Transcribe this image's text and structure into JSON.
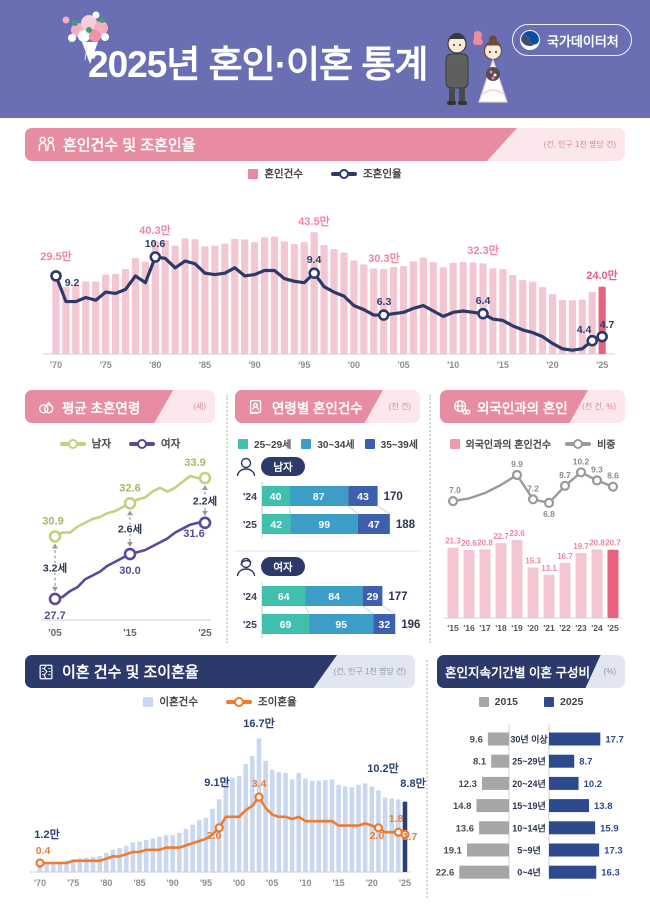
{
  "page": {
    "title": "2025년 혼인·이혼 통계",
    "agency": "국가데이터처"
  },
  "sections": {
    "marriage_trend": {
      "title": "혼인건수 및 조혼인율",
      "unit": "(건, 인구 1천 명당 건)",
      "legend_bar": "혼인건수",
      "legend_line": "조혼인율"
    },
    "first_marriage_age": {
      "title": "평균 초혼연령",
      "unit": "(세)",
      "legend_male": "남자",
      "legend_female": "여자"
    },
    "marriage_by_age": {
      "title": "연령별 혼인건수",
      "unit": "(천 건)"
    },
    "foreign_marriage": {
      "title": "외국인과의 혼인",
      "unit": "(천 건, %)",
      "legend_bar": "외국인과의 혼인건수",
      "legend_line": "비중"
    },
    "divorce_trend": {
      "title": "이혼 건수 및 조이혼율",
      "unit": "(건, 인구 1천 명당 건)",
      "legend_bar": "이혼건수",
      "legend_line": "조이혼율"
    },
    "divorce_duration": {
      "title": "혼인지속기간별 이혼 구성비",
      "unit": "(%)",
      "legend_2015": "2015",
      "legend_2025": "2025"
    }
  },
  "chart_data": {
    "marriage_trend": {
      "type": "bar+line",
      "x_start": 1970,
      "tick_labels": [
        "'70",
        "'75",
        "'80",
        "'85",
        "'90",
        "'95",
        "'00",
        "'05",
        "'10",
        "'15",
        "'20",
        "'25"
      ],
      "bars_unit": "만 건",
      "bars": [
        29.5,
        23.9,
        24.4,
        25.9,
        25.9,
        28.3,
        28.6,
        30.3,
        34.3,
        33.0,
        40.3,
        40.6,
        38.7,
        41.3,
        41.0,
        38.4,
        38.7,
        39.4,
        41.1,
        40.9,
        39.9,
        41.7,
        41.9,
        40.2,
        39.3,
        39.9,
        43.5,
        38.9,
        37.5,
        36.2,
        33.4,
        32.0,
        30.6,
        30.3,
        31.1,
        31.4,
        33.1,
        34.4,
        32.8,
        31.0,
        32.6,
        32.9,
        32.7,
        32.3,
        30.6,
        30.3,
        28.2,
        26.4,
        25.8,
        23.9,
        21.4,
        19.3,
        19.2,
        19.4,
        22.2,
        24.0
      ],
      "line_unit": "인구 1천 명당 건",
      "line": [
        9.2,
        7.3,
        7.3,
        7.6,
        7.4,
        8.0,
        7.9,
        8.2,
        9.2,
        8.7,
        10.6,
        10.5,
        9.8,
        10.3,
        10.1,
        9.4,
        9.3,
        9.4,
        9.8,
        9.2,
        9.3,
        9.6,
        9.6,
        9.0,
        8.8,
        8.7,
        9.4,
        8.4,
        8.0,
        7.7,
        7.0,
        6.7,
        6.3,
        6.3,
        6.4,
        6.5,
        6.8,
        7.0,
        6.6,
        6.2,
        6.5,
        6.6,
        6.5,
        6.4,
        6.0,
        5.9,
        5.5,
        5.2,
        5.0,
        4.7,
        4.2,
        3.8,
        3.7,
        3.8,
        4.4,
        4.7
      ],
      "bar_annotations": [
        {
          "year": 1970,
          "label": "29.5만"
        },
        {
          "year": 1980,
          "label": "40.3만"
        },
        {
          "year": 1996,
          "label": "43.5만"
        },
        {
          "year": 2003,
          "label": "30.3만"
        },
        {
          "year": 2013,
          "label": "32.3만"
        },
        {
          "year": 2025,
          "label": "24.0만"
        }
      ],
      "line_annotations": [
        {
          "year": 1970,
          "label": "9.2"
        },
        {
          "year": 1980,
          "label": "10.6"
        },
        {
          "year": 1996,
          "label": "9.4"
        },
        {
          "year": 2003,
          "label": "6.3"
        },
        {
          "year": 2013,
          "label": "6.4"
        },
        {
          "year": 2024,
          "label": "4.4"
        },
        {
          "year": 2025,
          "label": "4.7"
        }
      ],
      "highlight_year": 2025,
      "colors": {
        "bar": "#f3c6d1",
        "bar_highlight": "#e8617e",
        "line": "#2c3a6b",
        "bar_label": "#ef85a0",
        "bar_label_highlight": "#e75f80",
        "line_label": "#2c3a6b"
      }
    },
    "first_marriage_age": {
      "type": "line",
      "x_start": 2005,
      "tick_labels": [
        "'05",
        "'15",
        "'25"
      ],
      "series": [
        {
          "name": "남자",
          "color": "#c3d17e",
          "values": [
            30.9,
            31.1,
            31.1,
            31.4,
            31.6,
            31.8,
            31.9,
            32.1,
            32.2,
            32.4,
            32.6,
            32.8,
            32.9,
            33.2,
            33.4,
            33.2,
            33.4,
            33.7,
            34.0,
            33.9,
            33.9
          ],
          "point_labels": [
            {
              "year": 2005,
              "label": "30.9"
            },
            {
              "year": 2015,
              "label": "32.6"
            },
            {
              "year": 2025,
              "label": "33.9"
            }
          ]
        },
        {
          "name": "여자",
          "color": "#584a9b",
          "values": [
            27.7,
            27.8,
            28.1,
            28.3,
            28.7,
            28.9,
            29.1,
            29.4,
            29.6,
            29.8,
            30.0,
            30.1,
            30.2,
            30.4,
            30.6,
            30.8,
            31.1,
            31.3,
            31.5,
            31.6,
            31.6
          ],
          "point_labels": [
            {
              "year": 2005,
              "label": "27.7"
            },
            {
              "year": 2015,
              "label": "30.0"
            },
            {
              "year": 2025,
              "label": "31.6"
            }
          ]
        }
      ],
      "marker_years": [
        2005,
        2015,
        2025
      ],
      "gaps": [
        {
          "year": 2005,
          "label": "3.2세"
        },
        {
          "year": 2015,
          "label": "2.6세"
        },
        {
          "year": 2025,
          "label": "2.2세"
        }
      ]
    },
    "marriage_by_age": {
      "type": "stacked-bar",
      "age_groups": [
        "25~29세",
        "30~34세",
        "35~39세"
      ],
      "colors": [
        "#3fbfad",
        "#3c9dc6",
        "#3d5fae"
      ],
      "groups": [
        {
          "label": "남자",
          "rows": [
            {
              "year": "'24",
              "values": [
                40,
                87,
                43
              ],
              "total": 170
            },
            {
              "year": "'25",
              "values": [
                42,
                99,
                47
              ],
              "total": 188
            }
          ]
        },
        {
          "label": "여자",
          "rows": [
            {
              "year": "'24",
              "values": [
                64,
                84,
                29
              ],
              "total": 177
            },
            {
              "year": "'25",
              "values": [
                69,
                95,
                32
              ],
              "total": 196
            }
          ]
        }
      ]
    },
    "foreign_marriage": {
      "type": "bar+line",
      "tick_labels": [
        "'15",
        "'16",
        "'17",
        "'18",
        "'19",
        "'20",
        "'21",
        "'22",
        "'23",
        "'24",
        "'25"
      ],
      "bars": [
        21.3,
        20.6,
        20.8,
        22.7,
        23.6,
        15.3,
        13.1,
        16.7,
        19.7,
        20.8,
        20.7
      ],
      "line": [
        7.0,
        7.3,
        7.9,
        8.8,
        9.9,
        7.2,
        6.8,
        8.7,
        10.2,
        9.3,
        8.6
      ],
      "line_labeled_idx": [
        0,
        4,
        5,
        6,
        7,
        8,
        9,
        10
      ],
      "highlight_idx": 10,
      "colors": {
        "bar": "#f3c6d1",
        "bar_highlight": "#e8617e",
        "line": "#9a9a9a",
        "bar_label": "#ef85a0",
        "line_label": "#8c8c8c"
      }
    },
    "divorce_trend": {
      "type": "bar+line",
      "x_start": 1970,
      "tick_labels": [
        "'70",
        "'75",
        "'80",
        "'85",
        "'90",
        "'95",
        "'00",
        "'05",
        "'10",
        "'15",
        "'20",
        "'25"
      ],
      "bars_unit": "만 건",
      "bars": [
        1.2,
        1.2,
        1.2,
        1.3,
        1.4,
        1.6,
        1.7,
        1.8,
        1.9,
        2.0,
        2.4,
        2.8,
        3.0,
        3.3,
        3.7,
        3.8,
        4.0,
        4.2,
        4.4,
        4.6,
        4.6,
        4.9,
        5.4,
        5.9,
        6.5,
        6.8,
        7.9,
        9.1,
        11.7,
        11.8,
        12.0,
        13.5,
        14.5,
        16.7,
        13.9,
        12.8,
        12.5,
        12.4,
        11.6,
        12.4,
        11.7,
        11.4,
        11.4,
        11.5,
        11.6,
        10.9,
        10.7,
        10.6,
        10.9,
        11.1,
        10.7,
        10.2,
        9.3,
        9.2,
        9.1,
        8.8
      ],
      "line": [
        0.4,
        0.4,
        0.4,
        0.4,
        0.4,
        0.5,
        0.5,
        0.5,
        0.5,
        0.5,
        0.6,
        0.7,
        0.7,
        0.8,
        0.9,
        0.9,
        1.0,
        1.0,
        1.0,
        1.1,
        1.1,
        1.1,
        1.2,
        1.3,
        1.4,
        1.5,
        1.7,
        2.0,
        2.5,
        2.5,
        2.5,
        2.8,
        3.0,
        3.4,
        2.9,
        2.6,
        2.5,
        2.5,
        2.4,
        2.5,
        2.3,
        2.3,
        2.3,
        2.3,
        2.3,
        2.1,
        2.1,
        2.1,
        2.1,
        2.2,
        2.1,
        2.0,
        1.8,
        1.8,
        1.8,
        1.7
      ],
      "bar_annotations": [
        {
          "year": 1970,
          "label": "1.2만"
        },
        {
          "year": 1997,
          "label": "9.1만"
        },
        {
          "year": 2003,
          "label": "16.7만"
        },
        {
          "year": 2021,
          "label": "10.2만"
        },
        {
          "year": 2025,
          "label": "8.8만"
        }
      ],
      "line_annotations": [
        {
          "year": 1970,
          "label": "0.4"
        },
        {
          "year": 1997,
          "label": "2.0"
        },
        {
          "year": 2003,
          "label": "3.4"
        },
        {
          "year": 2021,
          "label": "2.0"
        },
        {
          "year": 2024,
          "label": "1.8"
        },
        {
          "year": 2025,
          "label": "1.7"
        }
      ],
      "highlight_year": 2025,
      "colors": {
        "bar": "#c9d7f0",
        "bar_highlight": "#2b3f77",
        "line": "#ee7b2f",
        "bar_label": "#2b3f77",
        "bar_label_highlight": "#2b3f77",
        "line_label": "#ee7b2f"
      }
    },
    "divorce_duration": {
      "type": "butterfly",
      "categories": [
        "30년 이상",
        "25~29년",
        "20~24년",
        "15~19년",
        "10~14년",
        "5~9년",
        "0~4년"
      ],
      "series": [
        {
          "name": "2015",
          "color": "#a6a6a6",
          "values": [
            9.6,
            8.1,
            12.3,
            14.8,
            13.6,
            19.1,
            22.6
          ]
        },
        {
          "name": "2025",
          "color": "#2e4a8f",
          "values": [
            17.7,
            8.7,
            10.2,
            13.8,
            15.9,
            17.3,
            16.3
          ]
        }
      ]
    }
  }
}
